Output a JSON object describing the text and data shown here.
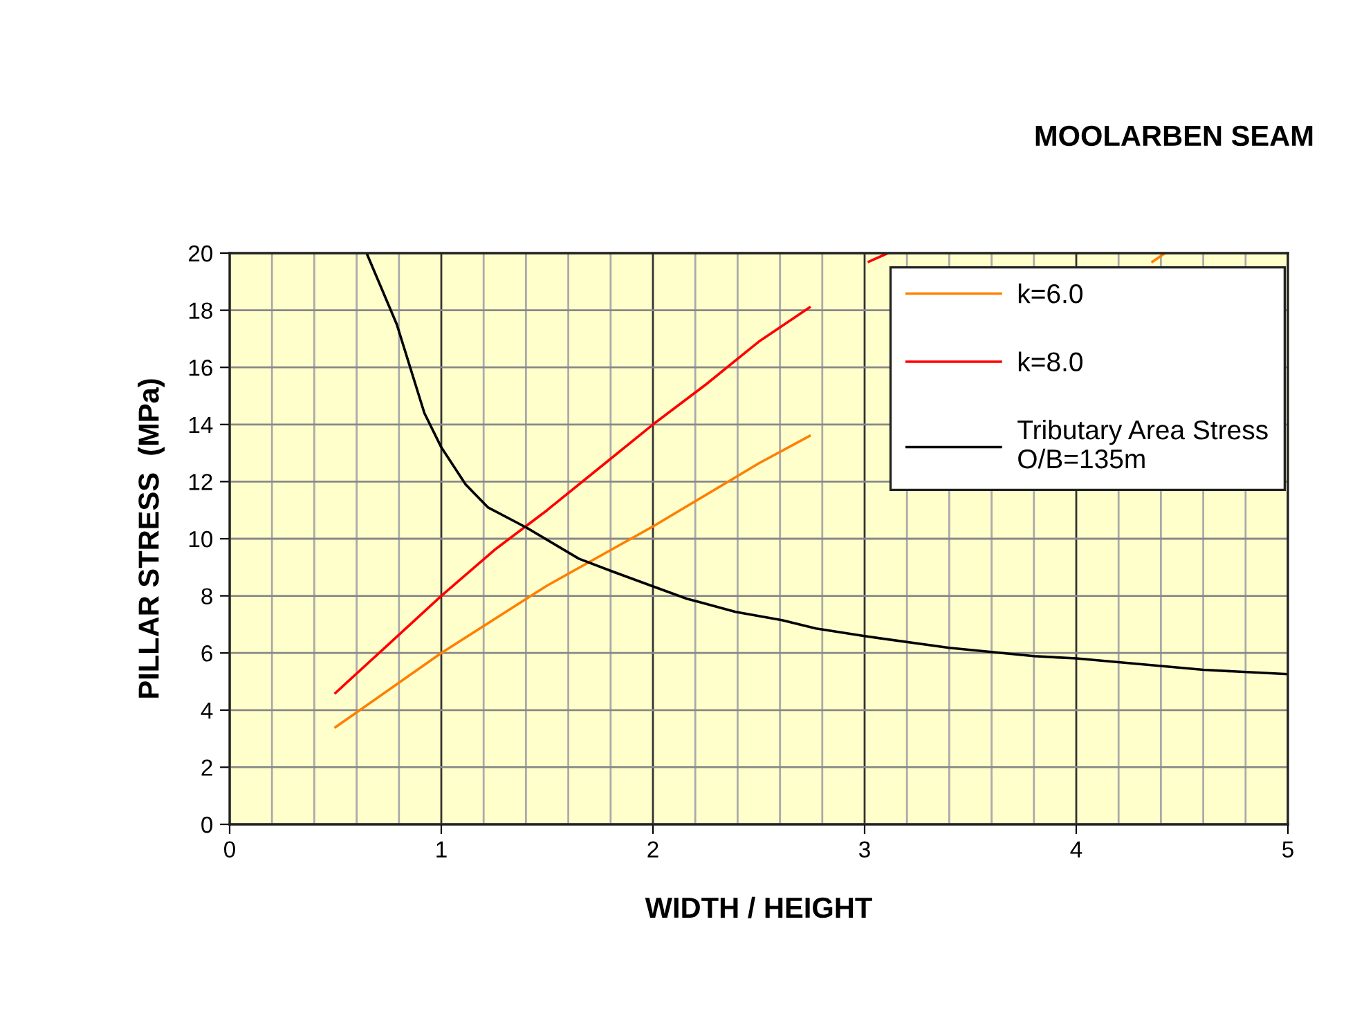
{
  "chart_data": {
    "type": "line",
    "title": "MOOLARBEN SEAM",
    "xlabel": "WIDTH / HEIGHT",
    "ylabel": "PILLAR STRESS  (MPa)",
    "xlim": [
      0,
      5
    ],
    "ylim": [
      0,
      20
    ],
    "xticks": [
      0,
      {
        "value": 0.2,
        "label": null
      },
      {
        "value": 0.4,
        "label": null
      },
      {
        "value": 0.6,
        "label": null
      },
      {
        "value": 0.8,
        "label": null
      },
      1,
      {
        "value": 1.2,
        "label": null
      },
      {
        "value": 1.4,
        "label": null
      },
      {
        "value": 1.6,
        "label": null
      },
      {
        "value": 1.8,
        "label": null
      },
      2,
      {
        "value": 2.2,
        "label": null
      },
      {
        "value": 2.4,
        "label": null
      },
      {
        "value": 2.6,
        "label": null
      },
      {
        "value": 2.8,
        "label": null
      },
      3,
      {
        "value": 3.2,
        "label": null
      },
      {
        "value": 3.4,
        "label": null
      },
      {
        "value": 3.6,
        "label": null
      },
      {
        "value": 3.8,
        "label": null
      },
      4,
      {
        "value": 4.2,
        "label": null
      },
      {
        "value": 4.4,
        "label": null
      },
      {
        "value": 4.6,
        "label": null
      },
      {
        "value": 4.8,
        "label": null
      },
      5
    ],
    "yticks": [
      0,
      2,
      4,
      6,
      8,
      10,
      12,
      14,
      16,
      18,
      20
    ],
    "grid": true,
    "legend": "top right",
    "marker": "none",
    "line_style": "solid",
    "series": [
      {
        "name": "k=6.0",
        "color": "#ff7f00",
        "x": [
          0.5,
          1.0,
          1.5,
          2.0,
          2.5,
          2.74,
          3.5,
          4.36,
          4.42
        ],
        "values": [
          3.4,
          6.0,
          8.36,
          10.43,
          12.64,
          13.6,
          null,
          19.7,
          20
        ]
      },
      {
        "name": "k=8.0",
        "color": "#ff0000",
        "x": [
          0.5,
          0.75,
          1.0,
          1.25,
          1.5,
          1.75,
          2.0,
          2.25,
          2.5,
          2.74,
          2.9,
          3.02,
          3.11
        ],
        "values": [
          4.6,
          6.3,
          8.0,
          9.6,
          11.0,
          12.5,
          14.0,
          15.4,
          16.9,
          18.1,
          null,
          19.7,
          20
        ]
      },
      {
        "name": "Tributary Area Stress\nO/B=135m",
        "color": "#000000",
        "x": [
          0.647,
          0.79,
          0.92,
          1.0,
          1.115,
          1.22,
          1.4,
          1.65,
          1.81,
          1.99,
          2.16,
          2.39,
          2.61,
          2.77,
          3.0,
          3.4,
          3.8,
          4.0,
          4.6,
          5.0
        ],
        "values": [
          20,
          17.5,
          14.4,
          13.2,
          11.9,
          11.1,
          10.4,
          9.3,
          8.85,
          8.36,
          7.9,
          7.44,
          7.15,
          6.86,
          6.59,
          6.18,
          5.89,
          5.81,
          5.41,
          5.26
        ]
      }
    ]
  }
}
